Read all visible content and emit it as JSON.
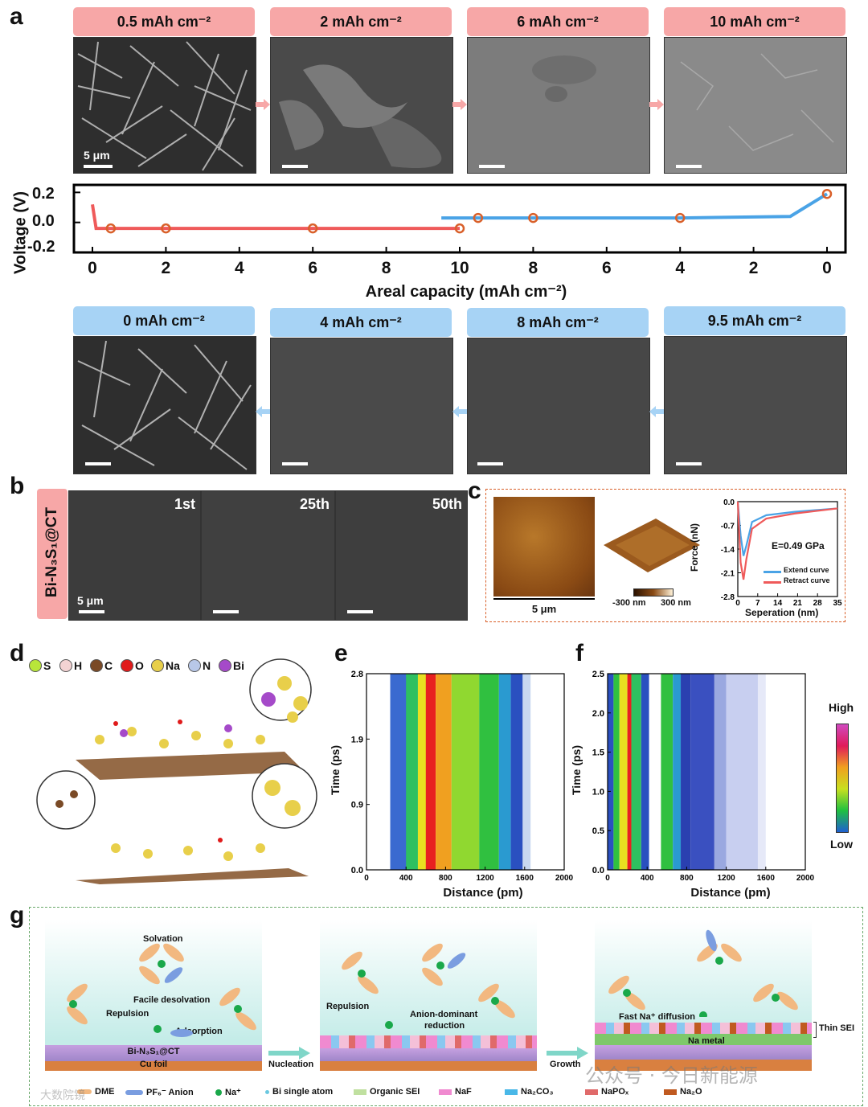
{
  "panel_a": {
    "letter": "a",
    "top_labels": [
      "0.5 mAh cm⁻²",
      "2 mAh cm⁻²",
      "6 mAh cm⁻²",
      "10 mAh cm⁻²"
    ],
    "bottom_labels": [
      "0 mAh cm⁻²",
      "4 mAh cm⁻²",
      "8 mAh cm⁻²",
      "9.5 mAh cm⁻²"
    ],
    "scale_label": "5 μm",
    "ylabel": "Voltage (V)",
    "xlabel": "Areal capacity (mAh cm⁻²)",
    "yticks": [
      "0.2",
      "0.0",
      "-0.2"
    ],
    "xticks": [
      "0",
      "2",
      "4",
      "6",
      "8",
      "10",
      "8",
      "6",
      "4",
      "2",
      "0"
    ]
  },
  "panel_b": {
    "letter": "b",
    "side_label": "Bi-N₃S₁@CT",
    "cycles": [
      "1st",
      "25th",
      "50th"
    ],
    "scale_label": "5 μm"
  },
  "panel_c": {
    "letter": "c",
    "scale_label": "5 μm",
    "colorbar_min": "-300 nm",
    "colorbar_max": "300 nm",
    "ylabel": "Force (nN)",
    "xlabel": "Seperation (nm)",
    "yticks": [
      "0.0",
      "-0.7",
      "-1.4",
      "-2.1",
      "-2.8"
    ],
    "xticks": [
      "0",
      "7",
      "14",
      "21",
      "28",
      "35"
    ],
    "modulus": "E=0.49 GPa",
    "legend": [
      "Extend curve",
      "Retract curve"
    ]
  },
  "panel_d": {
    "letter": "d",
    "atoms": [
      {
        "symbol": "S",
        "color": "#b8e63a"
      },
      {
        "symbol": "H",
        "color": "#f3d3d3"
      },
      {
        "symbol": "C",
        "color": "#7a4a26"
      },
      {
        "symbol": "O",
        "color": "#e01b1b"
      },
      {
        "symbol": "Na",
        "color": "#e8cf4a"
      },
      {
        "symbol": "N",
        "color": "#b8c8e8"
      },
      {
        "symbol": "Bi",
        "color": "#a54ac9"
      }
    ]
  },
  "panel_e": {
    "letter": "e",
    "ylabel": "Time (ps)",
    "xlabel": "Distance (pm)",
    "yticks": [
      "2.8",
      "1.9",
      "0.9",
      "0.0"
    ],
    "xticks": [
      "0",
      "400",
      "800",
      "1200",
      "1600",
      "2000"
    ]
  },
  "panel_f": {
    "letter": "f",
    "ylabel": "Time (ps)",
    "xlabel": "Distance (pm)",
    "yticks": [
      "2.5",
      "2.0",
      "1.5",
      "1.0",
      "0.5",
      "0.0"
    ],
    "xticks": [
      "0",
      "400",
      "800",
      "1200",
      "1600",
      "2000"
    ],
    "colorbar_high": "High",
    "colorbar_low": "Low"
  },
  "panel_g": {
    "letter": "g",
    "labels": {
      "solvation": "Solvation",
      "facile": "Facile desolvation",
      "repulsion1": "Repulsion",
      "adsorption": "Adsorption",
      "substrate": "Bi-N₃S₁@CT",
      "cufoil": "Cu foil",
      "nucleation": "Nucleation",
      "repulsion2": "Repulsion",
      "anion_dom_1": "Anion-dominant",
      "anion_dom_2": "reduction",
      "growth": "Growth",
      "fast_diff": "Fast Na⁺ diffusion",
      "na_metal": "Na metal",
      "thin_sei": "Thin SEI"
    },
    "legend": [
      "DME",
      "PF₆⁻ Anion",
      "Na⁺",
      "Bi single atom",
      "Organic SEI",
      "NaF",
      "Na₂CO₃",
      "NaPOₓ",
      "Na₂O"
    ]
  },
  "watermark": {
    "wechat": "公众号 · 今日新能源",
    "left": "大数院镜"
  },
  "colors": {
    "discharge": "#ef5a5a",
    "charge": "#4aa3e6",
    "marker": "#d9602a",
    "pink_header": "#f7a7a7",
    "blue_header": "#a7d3f5"
  },
  "chart_data": [
    {
      "type": "line",
      "title": "",
      "xlabel": "Areal capacity (mAh cm⁻²)",
      "ylabel": "Voltage (V)",
      "ylim": [
        -0.2,
        0.25
      ],
      "series": [
        {
          "name": "",
          "x": [
            0,
            0.1,
            0.5,
            2,
            6,
            10
          ],
          "y": [
            0.12,
            -0.04,
            -0.04,
            -0.04,
            -0.04,
            -0.04
          ]
        },
        {
          "name": "",
          "x": [
            10,
            10.5,
            8,
            4,
            1,
            0
          ],
          "y": [
            0.03,
            0.03,
            0.03,
            0.03,
            0.04,
            0.19
          ]
        }
      ],
      "markers_at": [
        "0.5",
        "2",
        "6",
        "10",
        "9.5",
        "8",
        "4",
        "0"
      ]
    },
    {
      "type": "line",
      "title": "",
      "xlabel": "Seperation (nm)",
      "ylabel": "Force (nN)",
      "xlim": [
        0,
        35
      ],
      "ylim": [
        -2.8,
        0.0
      ],
      "series": [
        {
          "name": "Extend curve",
          "x": [
            0,
            1,
            2,
            3,
            5,
            10,
            20,
            35
          ],
          "y": [
            0.1,
            -1.0,
            -1.6,
            -1.3,
            -0.6,
            -0.4,
            -0.3,
            -0.2
          ]
        },
        {
          "name": "Retract curve",
          "x": [
            0,
            1,
            2,
            3,
            5,
            10,
            20,
            35
          ],
          "y": [
            0.1,
            -1.8,
            -2.3,
            -1.7,
            -0.8,
            -0.5,
            -0.35,
            -0.2
          ]
        }
      ]
    }
  ]
}
